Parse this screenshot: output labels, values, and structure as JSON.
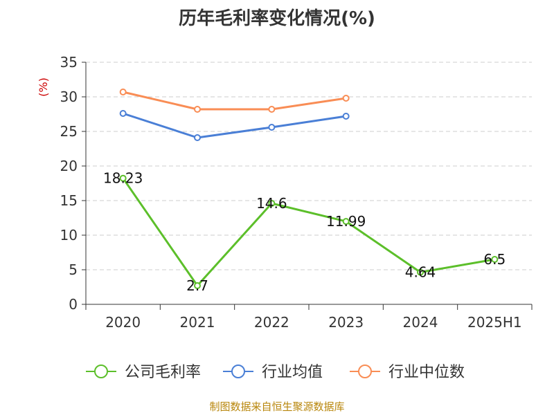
{
  "chart_data": {
    "type": "line",
    "title": "历年毛利率变化情况(%)",
    "ylabel": "(%)",
    "xlabel": "",
    "categories": [
      "2020",
      "2021",
      "2022",
      "2023",
      "2024",
      "2025H1"
    ],
    "ylim": [
      0,
      35
    ],
    "yticks": [
      0,
      5,
      10,
      15,
      20,
      25,
      30,
      35
    ],
    "grid": true,
    "legend_position": "bottom",
    "series": [
      {
        "name": "公司毛利率",
        "color": "#5cbf2a",
        "values": [
          18.23,
          2.7,
          14.6,
          11.99,
          4.64,
          6.5
        ],
        "data_labels": [
          "18.23",
          "2.7",
          "14.6",
          "11.99",
          "4.64",
          "6.5"
        ]
      },
      {
        "name": "行业均值",
        "color": "#4a7fd6",
        "values": [
          27.6,
          24.1,
          25.6,
          27.2,
          null,
          null
        ]
      },
      {
        "name": "行业中位数",
        "color": "#f98d55",
        "values": [
          30.7,
          28.2,
          28.2,
          29.8,
          null,
          null
        ]
      }
    ]
  },
  "footer": "制图数据来自恒生聚源数据库"
}
